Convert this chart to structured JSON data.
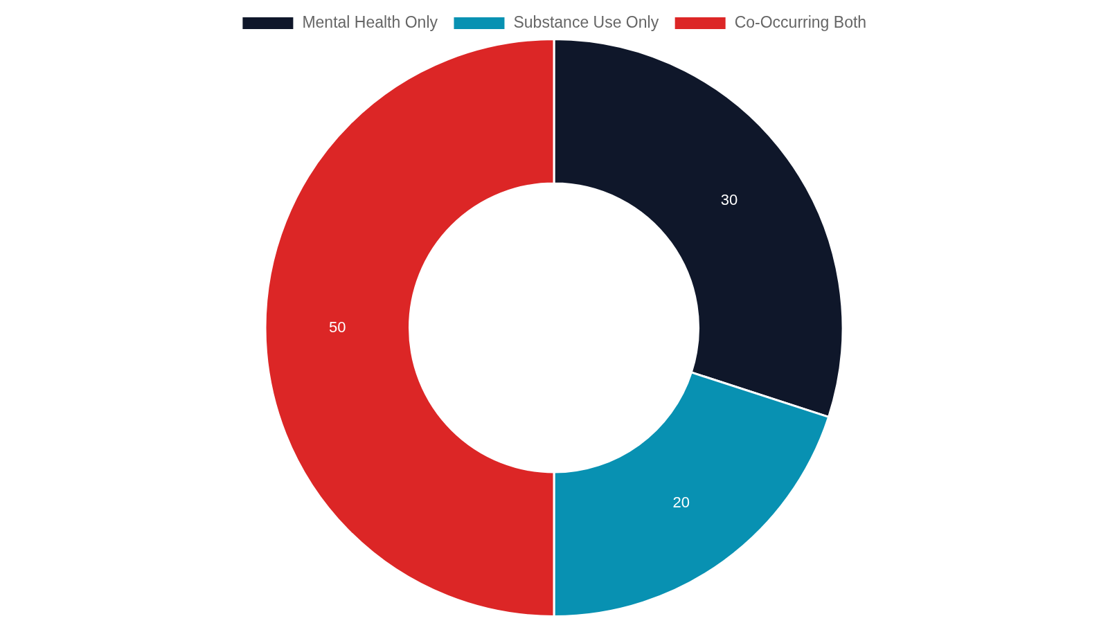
{
  "chart_data": {
    "type": "donut",
    "categories": [
      "Mental Health Only",
      "Substance Use Only",
      "Co-Occurring Both"
    ],
    "values": [
      30,
      20,
      50
    ],
    "colors": [
      "#0f172a",
      "#0891b2",
      "#dc2626"
    ],
    "legend": "top",
    "data_labels": true
  }
}
